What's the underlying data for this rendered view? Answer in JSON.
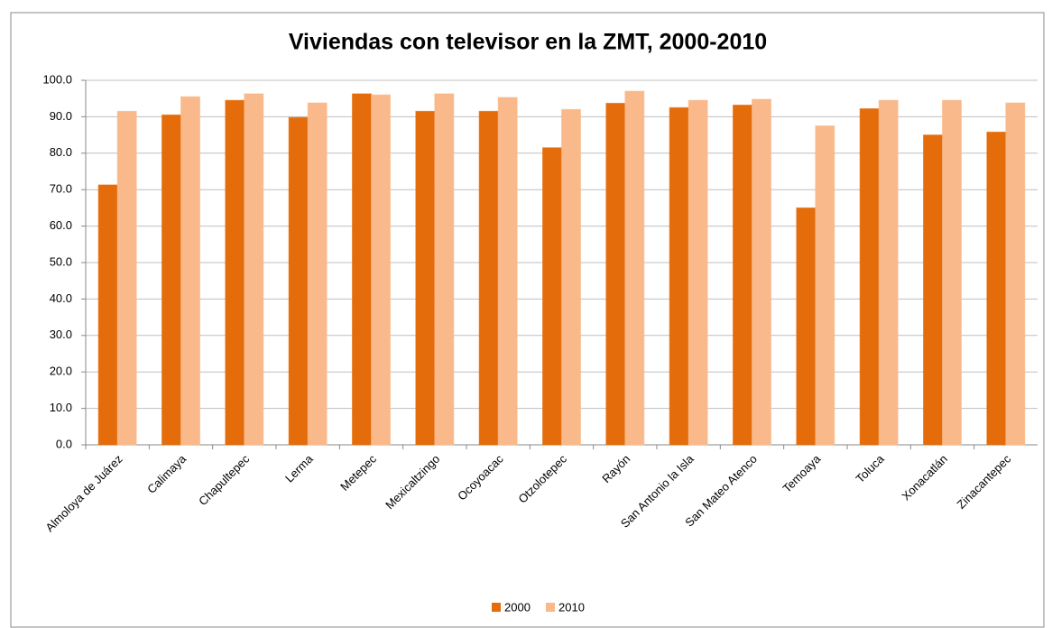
{
  "chart_data": {
    "type": "bar",
    "title": "Viviendas con televisor en la ZMT, 2000-2010",
    "categories": [
      "Almoloya de Juárez",
      "Calimaya",
      "Chapultepec",
      "Lerma",
      "Metepec",
      "Mexicaltzingo",
      "Ocoyoacac",
      "Otzolotepec",
      "Rayón",
      "San Antonio la Isla",
      "San Mateo Atenco",
      "Temoaya",
      "Toluca",
      "Xonacatlán",
      "Zinacantepec"
    ],
    "series": [
      {
        "name": "2000",
        "color": "#e46c0a",
        "values": [
          71.3,
          90.5,
          94.5,
          89.8,
          96.3,
          91.5,
          91.5,
          81.5,
          93.7,
          92.5,
          93.2,
          65.0,
          92.2,
          85.0,
          85.8
        ]
      },
      {
        "name": "2010",
        "color": "#f9b98a",
        "values": [
          91.5,
          95.5,
          96.3,
          93.8,
          96.0,
          96.3,
          95.3,
          92.0,
          97.0,
          94.5,
          94.8,
          87.5,
          94.5,
          94.5,
          93.8
        ]
      }
    ],
    "ylim": [
      0,
      100
    ],
    "yticks": [
      {
        "value": 0,
        "label": "0.0"
      },
      {
        "value": 10,
        "label": "10.0"
      },
      {
        "value": 20,
        "label": "20.0"
      },
      {
        "value": 30,
        "label": "30.0"
      },
      {
        "value": 40,
        "label": "40.0"
      },
      {
        "value": 50,
        "label": "50.0"
      },
      {
        "value": 60,
        "label": "60.0"
      },
      {
        "value": 70,
        "label": "70.0"
      },
      {
        "value": 80,
        "label": "80.0"
      },
      {
        "value": 90,
        "label": "90.0"
      },
      {
        "value": 100,
        "label": "100.0"
      }
    ],
    "grid": true,
    "legend": "bottom"
  }
}
